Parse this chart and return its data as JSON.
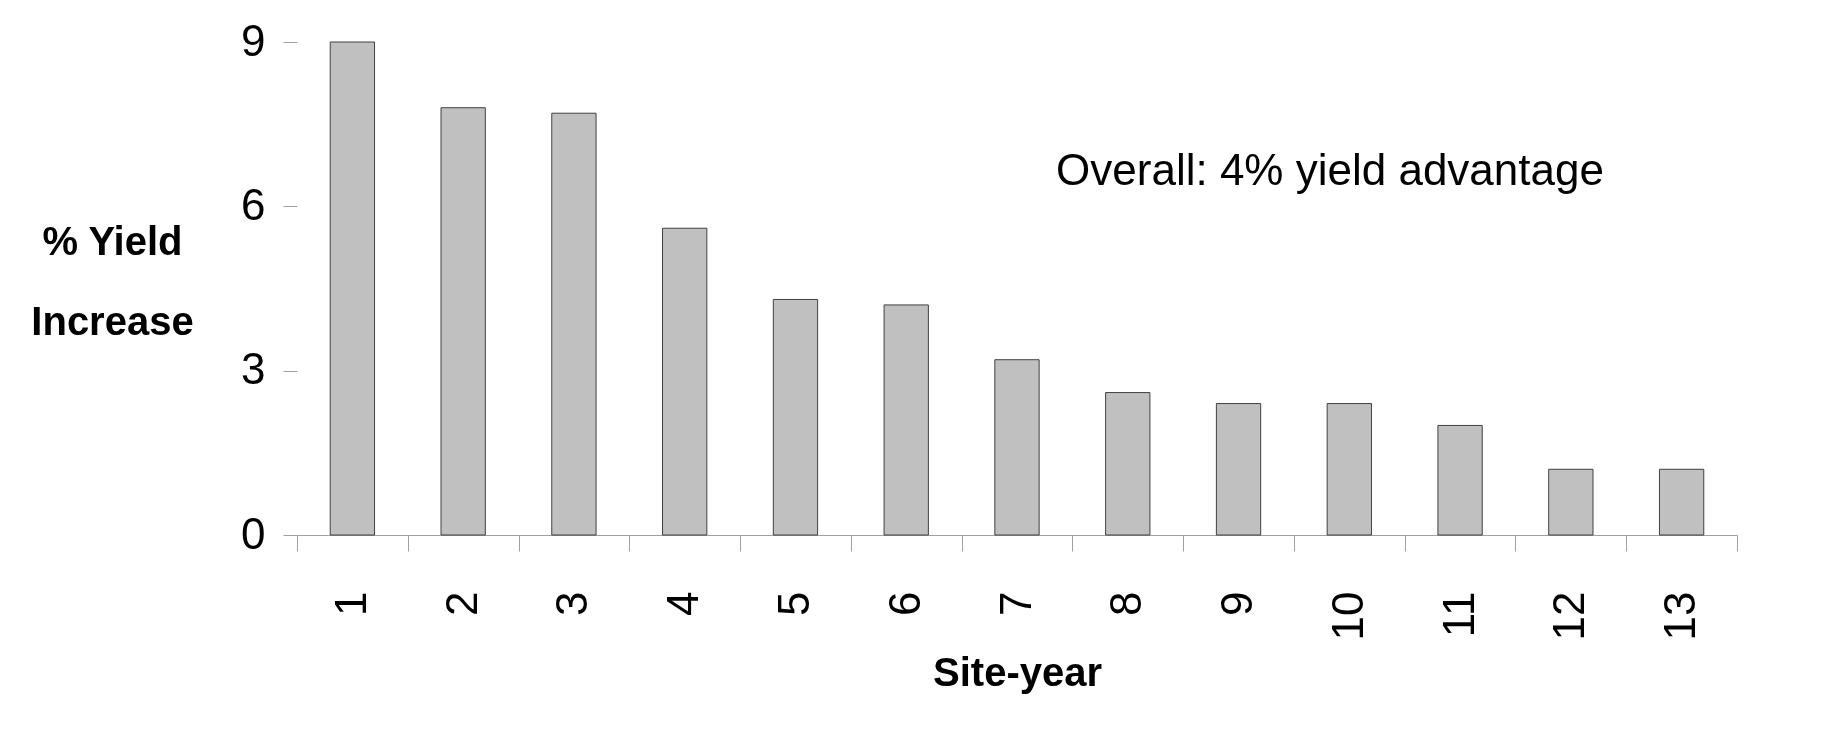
{
  "chart_data": {
    "type": "bar",
    "xlabel": "Site-year",
    "ylabel": "% Yield Increase",
    "categories": [
      "1",
      "2",
      "3",
      "4",
      "5",
      "6",
      "7",
      "8",
      "9",
      "10",
      "11",
      "12",
      "13"
    ],
    "values": [
      9.0,
      7.8,
      7.7,
      5.6,
      4.3,
      4.2,
      3.2,
      2.6,
      2.4,
      2.4,
      2.0,
      1.2,
      1.2
    ],
    "color": "#c0c0c0",
    "ylim": [
      0,
      9
    ],
    "yticks": [
      0,
      3,
      6,
      9
    ],
    "grid": false,
    "annotations": [
      "Overall: 4% yield advantage"
    ]
  }
}
